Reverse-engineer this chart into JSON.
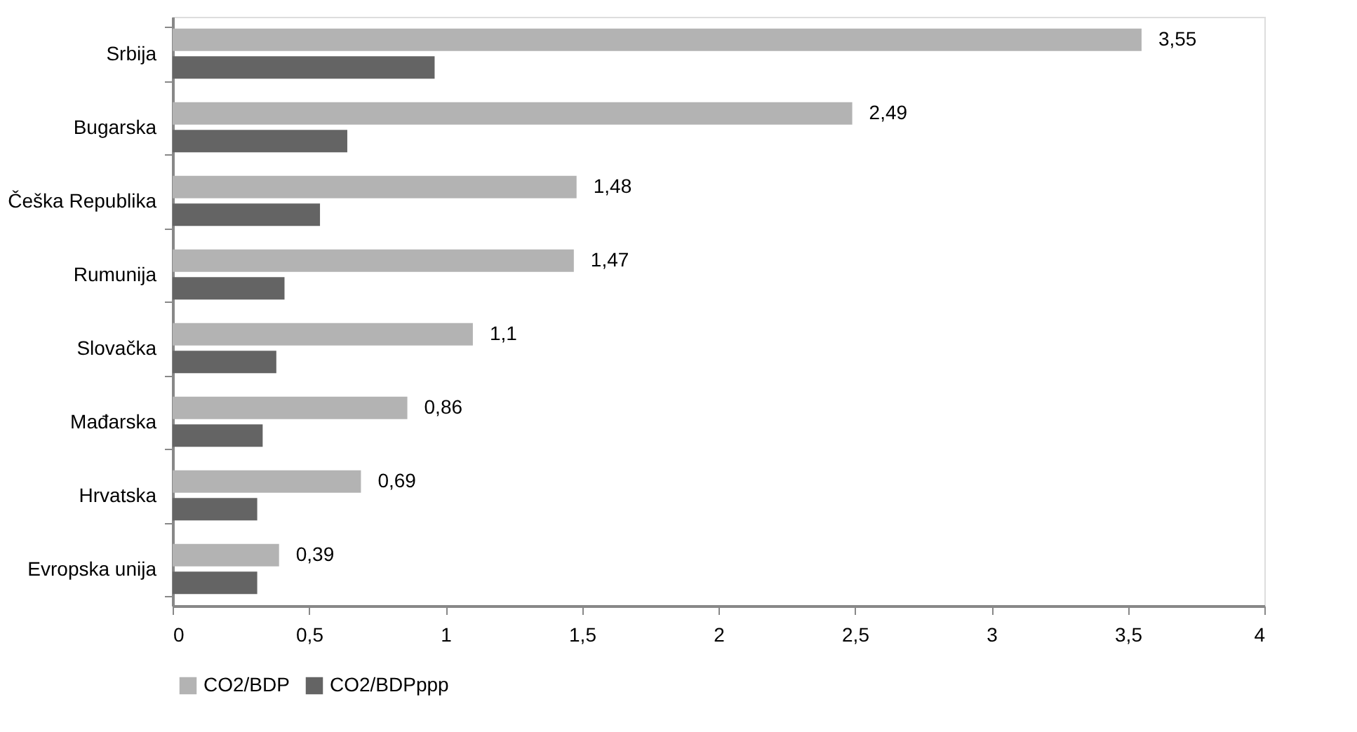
{
  "chart_data": {
    "type": "bar",
    "orientation": "horizontal",
    "categories": [
      "Srbija",
      "Bugarska",
      "Češka Republika",
      "Rumunija",
      "Slovačka",
      "Mađarska",
      "Hrvatska",
      "Evropska unija"
    ],
    "series": [
      {
        "name": "CO2/BDP",
        "color": "#b3b3b3",
        "values": [
          3.55,
          2.49,
          1.48,
          1.47,
          1.1,
          0.86,
          0.69,
          0.39
        ],
        "value_labels": [
          "3,55",
          "2,49",
          "1,48",
          "1,47",
          "1,1",
          "0,86",
          "0,69",
          "0,39"
        ]
      },
      {
        "name": "CO2/BDPppp",
        "color": "#646464",
        "values": [
          0.96,
          0.64,
          0.54,
          0.41,
          0.38,
          0.33,
          0.31,
          0.31
        ]
      }
    ],
    "xlim": [
      0,
      4
    ],
    "xticks": [
      0,
      {
        "value": 0.5,
        "label": "0,5"
      },
      1,
      {
        "value": 1.5,
        "label": "1,5"
      },
      2,
      {
        "value": 2.5,
        "label": "2,5"
      },
      3,
      {
        "value": 3.5,
        "label": "3,5"
      },
      4
    ],
    "grid": false,
    "legend": "bottom"
  }
}
